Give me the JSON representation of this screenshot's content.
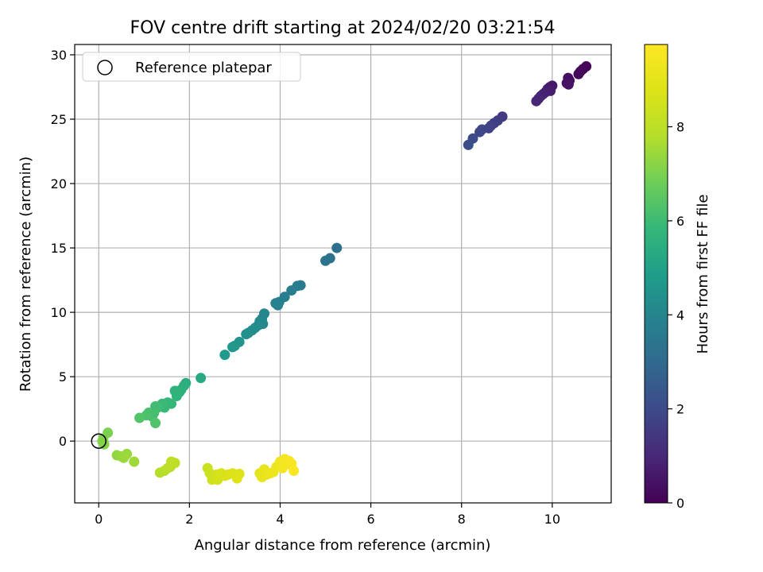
{
  "chart_data": {
    "type": "scatter",
    "title": "FOV centre drift starting at 2024/02/20 03:21:54",
    "xlabel": "Angular distance from reference (arcmin)",
    "ylabel": "Rotation from reference (arcmin)",
    "xlim": [
      -0.53,
      11.3
    ],
    "ylim": [
      -4.8,
      30.8
    ],
    "xticks": [
      0,
      2,
      4,
      6,
      8,
      10
    ],
    "yticks": [
      0,
      5,
      10,
      15,
      20,
      25,
      30
    ],
    "grid": true,
    "legend": {
      "placement": "top-left",
      "entries": [
        "Reference platepar"
      ]
    },
    "colorbar": {
      "label": "Hours from first FF file",
      "colormap": "viridis",
      "range": [
        0,
        9.75
      ],
      "ticks": [
        0,
        2,
        4,
        6,
        8
      ]
    },
    "reference_point": {
      "x": 0,
      "y": 0,
      "label": "Reference platepar"
    },
    "series": [
      {
        "columns": [
          "x",
          "y",
          "hours"
        ],
        "points": [
          [
            10.75,
            29.1,
            0.05
          ],
          [
            10.68,
            28.9,
            0.1
          ],
          [
            10.62,
            28.7,
            0.15
          ],
          [
            10.58,
            28.5,
            0.2
          ],
          [
            10.35,
            28.2,
            0.3
          ],
          [
            10.38,
            28.0,
            0.35
          ],
          [
            10.32,
            27.8,
            0.4
          ],
          [
            10.36,
            27.7,
            0.45
          ],
          [
            10.0,
            27.6,
            0.55
          ],
          [
            9.95,
            27.5,
            0.6
          ],
          [
            9.9,
            27.35,
            0.65
          ],
          [
            9.96,
            27.2,
            0.7
          ],
          [
            9.85,
            27.1,
            0.75
          ],
          [
            9.8,
            26.95,
            0.8
          ],
          [
            9.75,
            26.8,
            0.85
          ],
          [
            9.7,
            26.6,
            0.9
          ],
          [
            9.65,
            26.4,
            0.95
          ],
          [
            8.9,
            25.2,
            1.5
          ],
          [
            8.8,
            24.9,
            1.6
          ],
          [
            8.72,
            24.7,
            1.65
          ],
          [
            8.65,
            24.5,
            1.7
          ],
          [
            8.6,
            24.3,
            1.8
          ],
          [
            8.45,
            24.2,
            1.85
          ],
          [
            8.4,
            24.0,
            1.9
          ],
          [
            8.25,
            23.5,
            2.0
          ],
          [
            8.15,
            23.0,
            2.1
          ],
          [
            5.25,
            15.0,
            3.2
          ],
          [
            5.1,
            14.2,
            3.3
          ],
          [
            5.0,
            14.0,
            3.35
          ],
          [
            4.45,
            12.1,
            3.6
          ],
          [
            4.38,
            12.05,
            3.65
          ],
          [
            4.25,
            11.7,
            3.7
          ],
          [
            4.1,
            11.2,
            3.75
          ],
          [
            3.98,
            10.8,
            3.8
          ],
          [
            3.9,
            10.7,
            3.85
          ],
          [
            3.95,
            10.55,
            3.9
          ],
          [
            3.65,
            9.9,
            4.0
          ],
          [
            3.6,
            9.5,
            4.05
          ],
          [
            3.55,
            9.3,
            4.1
          ],
          [
            3.62,
            9.1,
            4.15
          ],
          [
            3.52,
            9.0,
            4.2
          ],
          [
            3.45,
            8.8,
            4.25
          ],
          [
            3.38,
            8.6,
            4.3
          ],
          [
            3.3,
            8.4,
            4.35
          ],
          [
            3.25,
            8.3,
            4.4
          ],
          [
            3.1,
            7.7,
            4.55
          ],
          [
            3.0,
            7.4,
            4.6
          ],
          [
            2.95,
            7.3,
            4.65
          ],
          [
            2.78,
            6.7,
            4.75
          ],
          [
            2.25,
            4.9,
            5.3
          ],
          [
            1.92,
            4.5,
            5.45
          ],
          [
            1.88,
            4.3,
            5.5
          ],
          [
            1.82,
            4.0,
            5.55
          ],
          [
            1.78,
            3.8,
            5.6
          ],
          [
            1.72,
            3.5,
            5.7
          ],
          [
            1.68,
            3.9,
            5.65
          ],
          [
            1.6,
            2.9,
            5.8
          ],
          [
            1.52,
            3.0,
            5.85
          ],
          [
            1.45,
            2.6,
            5.9
          ],
          [
            1.4,
            2.9,
            5.95
          ],
          [
            1.3,
            2.6,
            6.0
          ],
          [
            1.25,
            2.7,
            6.05
          ],
          [
            1.22,
            2.2,
            6.1
          ],
          [
            1.18,
            1.9,
            6.15
          ],
          [
            1.1,
            2.2,
            6.2
          ],
          [
            1.05,
            2.0,
            6.25
          ],
          [
            1.25,
            1.4,
            6.3
          ],
          [
            0.9,
            1.8,
            6.35
          ],
          [
            0.2,
            0.65,
            7.0
          ],
          [
            0.1,
            0.2,
            7.05
          ],
          [
            0.08,
            0.0,
            7.1
          ],
          [
            0.12,
            -0.25,
            7.15
          ],
          [
            0.4,
            -1.1,
            7.3
          ],
          [
            0.5,
            -1.2,
            7.35
          ],
          [
            0.62,
            -1.0,
            7.4
          ],
          [
            0.55,
            -1.3,
            7.45
          ],
          [
            0.78,
            -1.6,
            7.5
          ],
          [
            1.35,
            -2.45,
            7.8
          ],
          [
            1.45,
            -2.3,
            7.85
          ],
          [
            1.52,
            -2.1,
            7.9
          ],
          [
            1.58,
            -2.0,
            7.95
          ],
          [
            1.6,
            -1.6,
            8.0
          ],
          [
            1.68,
            -1.7,
            8.05
          ],
          [
            2.4,
            -2.1,
            8.3
          ],
          [
            2.45,
            -2.5,
            8.35
          ],
          [
            2.5,
            -3.0,
            8.4
          ],
          [
            2.55,
            -2.8,
            8.45
          ],
          [
            2.6,
            -2.6,
            8.5
          ],
          [
            2.62,
            -3.0,
            8.55
          ],
          [
            2.7,
            -2.5,
            8.6
          ],
          [
            2.78,
            -2.7,
            8.65
          ],
          [
            2.85,
            -2.6,
            8.7
          ],
          [
            2.95,
            -2.5,
            8.75
          ],
          [
            3.05,
            -2.9,
            8.8
          ],
          [
            3.1,
            -2.55,
            8.85
          ],
          [
            3.55,
            -2.5,
            9.0
          ],
          [
            3.6,
            -2.8,
            9.05
          ],
          [
            3.65,
            -2.2,
            9.1
          ],
          [
            3.7,
            -2.6,
            9.15
          ],
          [
            3.78,
            -2.5,
            9.2
          ],
          [
            3.85,
            -2.4,
            9.25
          ],
          [
            3.92,
            -2.0,
            9.3
          ],
          [
            4.0,
            -1.6,
            9.35
          ],
          [
            4.05,
            -2.1,
            9.4
          ],
          [
            4.1,
            -1.4,
            9.45
          ],
          [
            4.15,
            -1.8,
            9.5
          ],
          [
            4.2,
            -1.55,
            9.55
          ],
          [
            4.25,
            -1.75,
            9.6
          ],
          [
            4.3,
            -2.3,
            9.65
          ]
        ]
      }
    ]
  }
}
